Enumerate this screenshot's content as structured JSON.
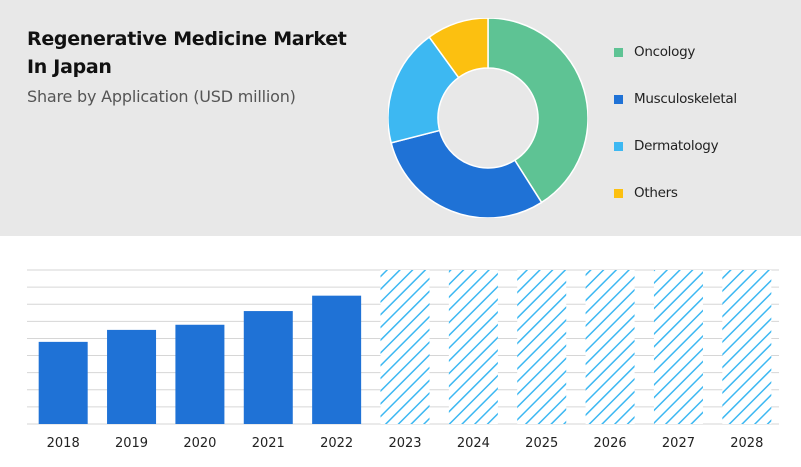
{
  "header": {
    "title_line1": "Regenerative Medicine Market",
    "title_line2": "In Japan",
    "subtitle": "Share by Application (USD million)"
  },
  "legend": {
    "items": [
      {
        "label": "Oncology",
        "color": "#5ec394"
      },
      {
        "label": "Musculoskeletal",
        "color": "#1f72d6"
      },
      {
        "label": "Dermatology",
        "color": "#3db8f2"
      },
      {
        "label": "Others",
        "color": "#fcc010"
      }
    ]
  },
  "chart_data": [
    {
      "type": "pie",
      "variant": "donut",
      "categories": [
        "Oncology",
        "Musculoskeletal",
        "Dermatology",
        "Others"
      ],
      "values": [
        41,
        30,
        19,
        10
      ],
      "colors": [
        "#5ec394",
        "#1f72d6",
        "#3db8f2",
        "#fcc010"
      ],
      "legend_position": "right"
    },
    {
      "type": "bar",
      "categories": [
        "2018",
        "2019",
        "2020",
        "2021",
        "2022",
        "2023",
        "2024",
        "2025",
        "2026",
        "2027",
        "2028"
      ],
      "values": [
        48,
        55,
        58,
        66,
        75,
        90,
        90,
        90,
        90,
        90,
        90
      ],
      "projected": [
        false,
        false,
        false,
        false,
        false,
        true,
        true,
        true,
        true,
        true,
        true
      ],
      "ylim": [
        0,
        90
      ],
      "grid": true,
      "bar_color": "#1f72d6",
      "projected_color": "#3db8f2"
    }
  ]
}
